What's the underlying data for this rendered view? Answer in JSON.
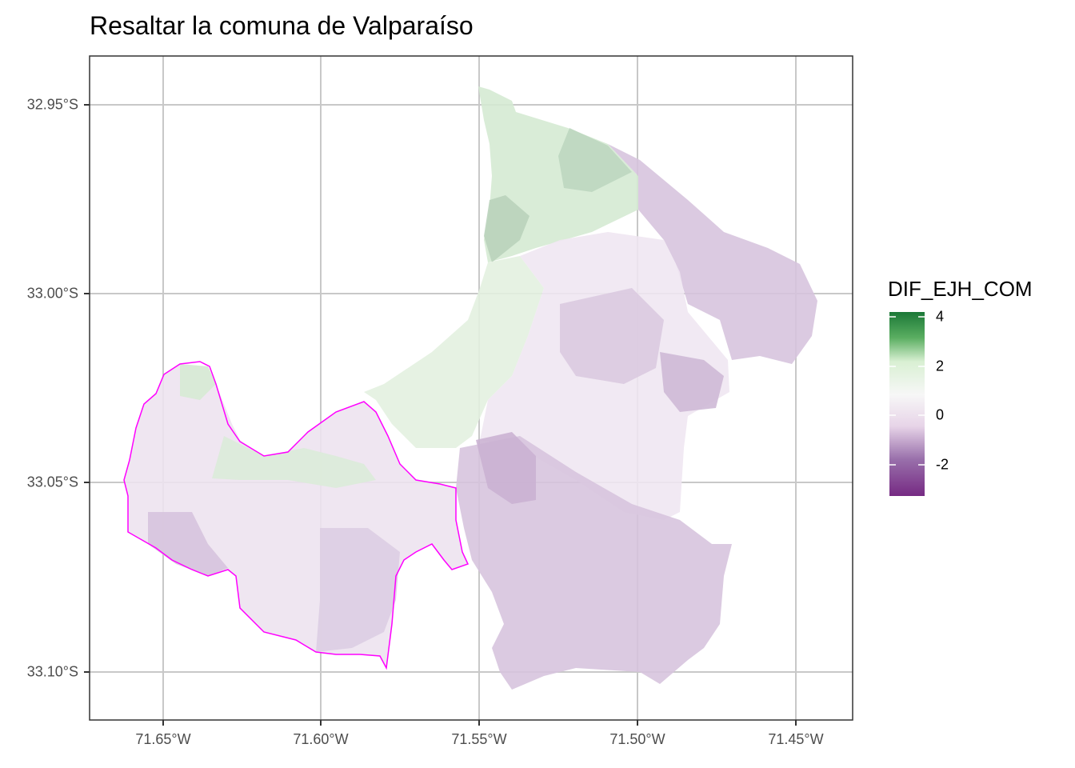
{
  "title": "Resaltar la comuna de Valparaíso",
  "axes": {
    "x_ticks": [
      "71.65°W",
      "71.60°W",
      "71.55°W",
      "71.50°W",
      "71.45°W"
    ],
    "y_ticks": [
      "32.95°S",
      "33.00°S",
      "33.05°S",
      "33.10°S"
    ]
  },
  "legend": {
    "title": "DIF_EJH_COM",
    "labels": [
      "4",
      "2",
      "0",
      "-2"
    ],
    "colors": [
      "#1b7837",
      "#5aae61",
      "#a6dba0",
      "#d9f0d3",
      "#f7f7f7",
      "#e7d4e8",
      "#c2a5cf",
      "#9970ab",
      "#762a83"
    ]
  },
  "colors": {
    "highlight_outline": "#ff00ff",
    "grid": "#c8c8c8",
    "panel_border": "#333333"
  }
}
